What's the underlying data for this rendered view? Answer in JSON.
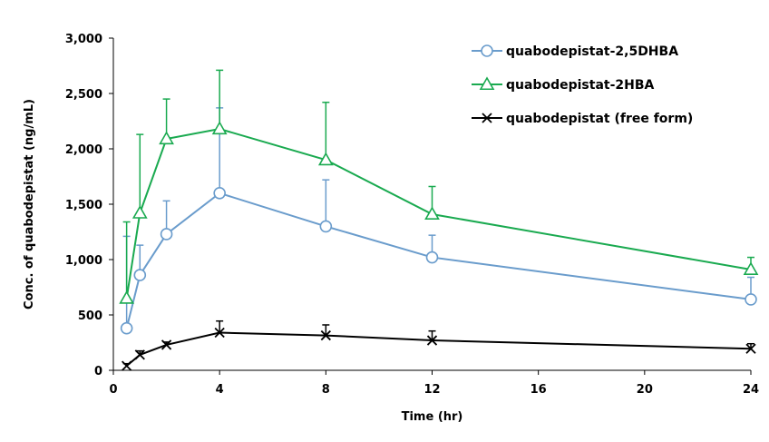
{
  "chart_data": {
    "type": "line",
    "title": "",
    "xlabel": "Time (hr)",
    "ylabel": "Conc. of quabodepistat (ng/mL)",
    "xlim": [
      0,
      24
    ],
    "ylim": [
      0,
      3000
    ],
    "x_ticks": [
      0,
      4,
      8,
      12,
      16,
      20,
      24
    ],
    "y_ticks": [
      0,
      500,
      1000,
      1500,
      2000,
      2500,
      3000
    ],
    "x_tick_labels": [
      "0",
      "4",
      "8",
      "12",
      "16",
      "20",
      "24"
    ],
    "y_tick_labels": [
      "0",
      "500",
      "1,000",
      "1,500",
      "2,000",
      "2,500",
      "3,000"
    ],
    "grid": false,
    "legend_position": "top-right",
    "series": [
      {
        "name": "quabodepistat-2,5DHBA",
        "color": "#6a9ccc",
        "marker": "circle",
        "x": [
          0.5,
          1,
          2,
          4,
          8,
          12,
          24
        ],
        "y": [
          380,
          860,
          1230,
          1600,
          1300,
          1020,
          640
        ],
        "error_upper": [
          1210,
          1130,
          1530,
          2370,
          1720,
          1220,
          840
        ]
      },
      {
        "name": "quabodepistat-2HBA",
        "color": "#1aaa50",
        "marker": "triangle",
        "x": [
          0.5,
          1,
          2,
          4,
          8,
          12,
          24
        ],
        "y": [
          650,
          1420,
          2090,
          2180,
          1900,
          1410,
          910
        ],
        "error_upper": [
          1340,
          2130,
          2450,
          2710,
          2420,
          1660,
          1020
        ]
      },
      {
        "name": "quabodepistat (free form)",
        "color": "#000000",
        "marker": "x",
        "x": [
          0.5,
          1,
          2,
          4,
          8,
          12,
          24
        ],
        "y": [
          40,
          140,
          230,
          340,
          315,
          270,
          195
        ],
        "error_upper": [
          60,
          175,
          255,
          445,
          410,
          355,
          240
        ]
      }
    ]
  }
}
